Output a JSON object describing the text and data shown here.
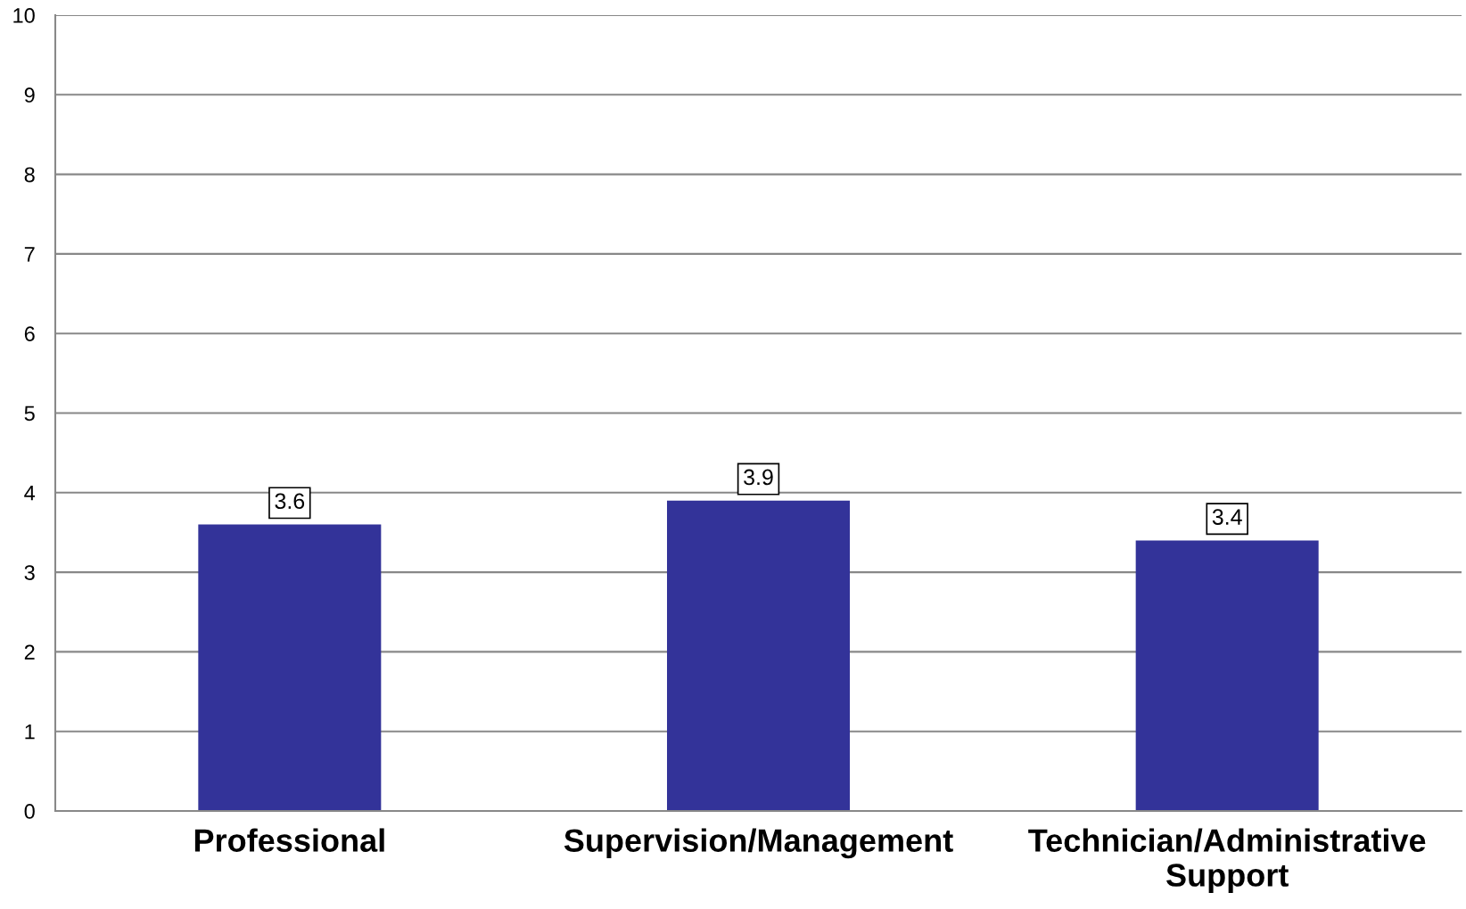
{
  "chart_data": {
    "type": "bar",
    "categories": [
      "Professional",
      "Supervision/Management",
      "Technician/Administrative Support"
    ],
    "values": [
      3.6,
      3.9,
      3.4
    ],
    "color": "#333399",
    "ylim": [
      0,
      10
    ],
    "yticks": [
      0,
      1,
      2,
      3,
      4,
      5,
      6,
      7,
      8,
      9,
      10
    ],
    "grid": "y",
    "legend": false,
    "data_labels": true
  }
}
